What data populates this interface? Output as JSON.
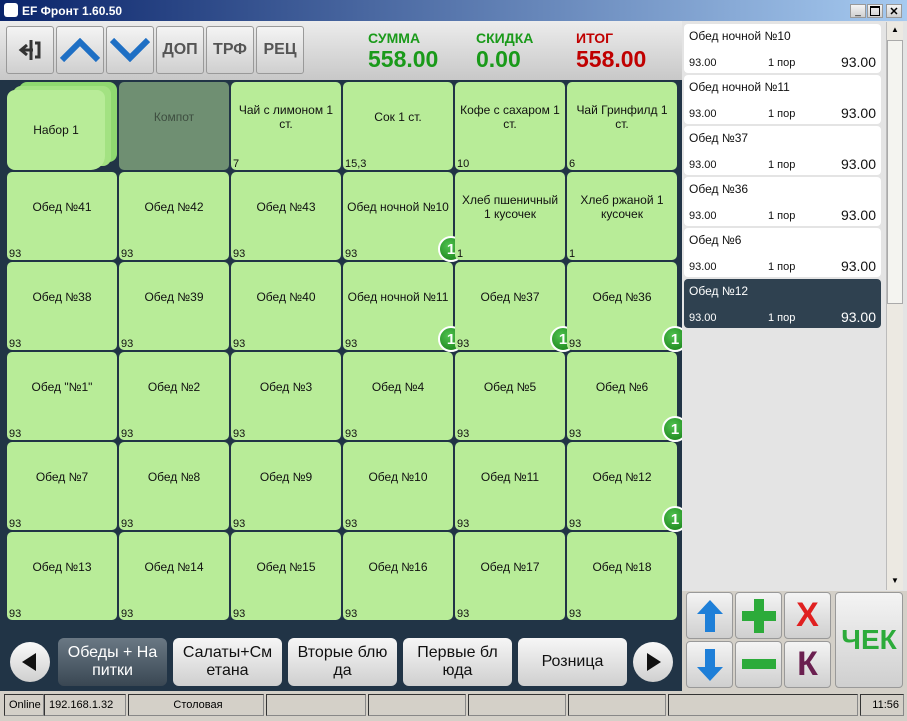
{
  "window": {
    "title": "EF Фронт 1.60.50"
  },
  "toolbar": {
    "buttons": [
      "ДОП",
      "ТРФ",
      "РЕЦ"
    ],
    "totals": [
      {
        "label": "СУММА",
        "value": "558.00",
        "color": "#1a9a1a"
      },
      {
        "label": "СКИДКА",
        "value": "0.00",
        "color": "#1a9a1a"
      },
      {
        "label": "ИТОГ",
        "value": "558.00",
        "color": "#c00000"
      }
    ]
  },
  "menu": {
    "tiles": [
      {
        "label": "Набор 1",
        "kind": "folder"
      },
      {
        "label": "Компот",
        "kind": "disabled"
      },
      {
        "label": "Чай с лимоном 1 ст.",
        "qty": "7"
      },
      {
        "label": "Сок 1 ст.",
        "qty": "15,3"
      },
      {
        "label": "Кофе с сахаром 1 ст.",
        "qty": "10"
      },
      {
        "label": "Чай Гринфилд 1 ст.",
        "qty": "6"
      },
      {
        "label": "Обед №41",
        "qty": "93"
      },
      {
        "label": "Обед №42",
        "qty": "93"
      },
      {
        "label": "Обед №43",
        "qty": "93"
      },
      {
        "label": "Обед ночной №10",
        "qty": "93",
        "badge": "1"
      },
      {
        "label": "Хлеб пшеничный 1 кусочек",
        "qty": "1"
      },
      {
        "label": "Хлеб ржаной 1 кусочек",
        "qty": "1"
      },
      {
        "label": "Обед №38",
        "qty": "93"
      },
      {
        "label": "Обед №39",
        "qty": "93"
      },
      {
        "label": "Обед №40",
        "qty": "93"
      },
      {
        "label": "Обед ночной №11",
        "qty": "93",
        "badge": "1"
      },
      {
        "label": "Обед №37",
        "qty": "93",
        "badge": "1"
      },
      {
        "label": "Обед №36",
        "qty": "93",
        "badge": "1"
      },
      {
        "label": "Обед \"№1\"",
        "qty": "93"
      },
      {
        "label": "Обед №2",
        "qty": "93"
      },
      {
        "label": "Обед №3",
        "qty": "93"
      },
      {
        "label": "Обед №4",
        "qty": "93"
      },
      {
        "label": "Обед №5",
        "qty": "93"
      },
      {
        "label": "Обед №6",
        "qty": "93",
        "badge": "1"
      },
      {
        "label": "Обед №7",
        "qty": "93"
      },
      {
        "label": "Обед №8",
        "qty": "93"
      },
      {
        "label": "Обед №9",
        "qty": "93"
      },
      {
        "label": "Обед №10",
        "qty": "93"
      },
      {
        "label": "Обед №11",
        "qty": "93"
      },
      {
        "label": "Обед №12",
        "qty": "93",
        "badge": "1"
      },
      {
        "label": "Обед №13",
        "qty": "93"
      },
      {
        "label": "Обед №14",
        "qty": "93"
      },
      {
        "label": "Обед №15",
        "qty": "93"
      },
      {
        "label": "Обед №16",
        "qty": "93"
      },
      {
        "label": "Обед №17",
        "qty": "93"
      },
      {
        "label": "Обед №18",
        "qty": "93"
      }
    ]
  },
  "categories": [
    {
      "label": "Обеды + Напитки",
      "selected": true
    },
    {
      "label": "Салаты+Сметана"
    },
    {
      "label": "Вторые блюда"
    },
    {
      "label": "Первые блюда"
    },
    {
      "label": "Розница"
    }
  ],
  "order": {
    "items": [
      {
        "name": "Обед ночной №10",
        "price": "93.00",
        "qty": "1 пор",
        "sum": "93.00"
      },
      {
        "name": "Обед ночной №11",
        "price": "93.00",
        "qty": "1 пор",
        "sum": "93.00"
      },
      {
        "name": "Обед №37",
        "price": "93.00",
        "qty": "1 пор",
        "sum": "93.00"
      },
      {
        "name": "Обед №36",
        "price": "93.00",
        "qty": "1 пор",
        "sum": "93.00"
      },
      {
        "name": "Обед №6",
        "price": "93.00",
        "qty": "1 пор",
        "sum": "93.00"
      },
      {
        "name": "Обед №12",
        "price": "93.00",
        "qty": "1 пор",
        "sum": "93.00",
        "selected": true
      }
    ]
  },
  "actions": {
    "delete": "X",
    "check": "ЧЕК",
    "k": "К"
  },
  "status": [
    "Online",
    "192.168.1.32",
    "Столовая",
    "11:56"
  ]
}
